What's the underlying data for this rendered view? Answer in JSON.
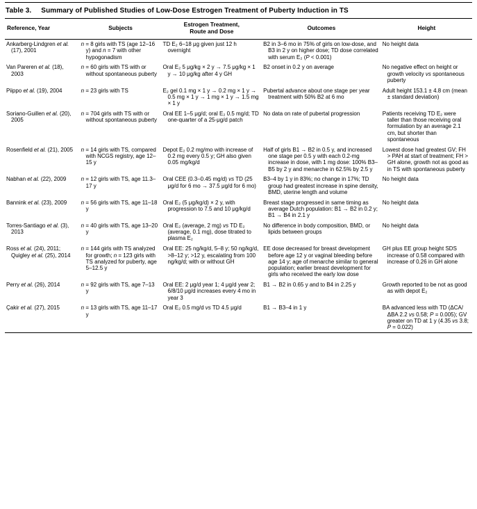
{
  "page": {
    "title_label": "Table 3.",
    "title_text": "Summary of Published Studies of Low-Dose Estrogen Treatment of Puberty Induction in TS"
  },
  "table": {
    "columns": [
      "Reference, Year",
      "Subjects",
      "Estrogen Treatment,\nRoute and Dose",
      "Outcomes",
      "Height"
    ],
    "rows": [
      {
        "reference": "Ankarberg-Lindgren et al. (17), 2001",
        "subjects": "n = 8 girls with TS (age 12–16 y) and n = 7 with other hypogonadism",
        "treatment": "TD E₂ 6–18 μg given just 12 h overnight",
        "outcomes": "B2 in 3–6 mo in 75% of girls on low-dose, and B3 in 2 y on higher dose; TD dose correlated with serum E₂ (P < 0.001)",
        "height": "No height data"
      },
      {
        "reference": "Van Pareren et al. (18), 2003",
        "subjects": "n = 60 girls with TS with or without spontaneous puberty",
        "treatment": "Oral E₂ 5 μg/kg × 2 y → 7.5 μg/kg × 1 y → 10 μg/kg after 4 y GH",
        "outcomes": "B2 onset in 0.2 y on average",
        "height": "No negative effect on height or growth velocity vs spontaneous puberty"
      },
      {
        "reference": "Piippo et al. (19), 2004",
        "subjects": "n = 23 girls with TS",
        "treatment": "E₂ gel 0.1 mg × 1 y → 0.2 mg × 1 y → 0.5 mg × 1 y → 1 mg × 1 y → 1.5 mg × 1 y",
        "outcomes": "Pubertal advance about one stage per year treatment with 50% B2 at 6 mo",
        "height": "Adult height 153.1 ± 4.8 cm (mean ± standard deviation)"
      },
      {
        "reference": "Soriano-Guillen et al. (20), 2005",
        "subjects": "n = 704 girls with TS with or without spontaneous puberty",
        "treatment": "Oral EE 1–5 μg/d; oral E₂ 0.5 mg/d; TD one-quarter of a 25-μg/d patch",
        "outcomes": "No data on rate of pubertal progression",
        "height": "Patients receiving TD E₂ were taller than those receiving oral formulation by an average 2.1 cm, but shorter than spontaneous"
      },
      {
        "reference": "Rosenfield et al. (21), 2005",
        "subjects": "n = 14 girls with TS, compared with NCGS registry, age 12–15 y",
        "treatment": "Depot E₂ 0.2 mg/mo with increase of 0.2 mg every 0.5 y; GH also given 0.05 mg/kg/d",
        "outcomes": "Half of girls B1 → B2 in 0.5 y, and increased one stage per 0.5 y with each 0.2-mg increase in dose, with 1 mg dose: 100% B3–B5 by 2 y and menarche in 62.5% by 2.5 y",
        "height": "Lowest dose had greatest GV; FH > PAH at start of treatment; FH > GH alone, growth not as good as in TS with spontaneous puberty"
      },
      {
        "reference": "Nabhan et al. (22), 2009",
        "subjects": "n = 12 girls with TS, age 11.3–17 y",
        "treatment": "Oral CEE (0.3–0.45 mg/d) vs TD (25 μg/d for 6 mo → 37.5 μg/d for 6 mo)",
        "outcomes": "B3–4 by 1 y in 83%; no change in 17%; TD group had greatest increase in spine density, BMD, uterine length and volume",
        "height": "No height data"
      },
      {
        "reference": "Bannink et al. (23), 2009",
        "subjects": "n = 56 girls with TS, age 11–18 y",
        "treatment": "Oral E₂ (5 μg/kg/d) × 2 y, with progression to 7.5 and 10 μg/kg/d",
        "outcomes": "Breast stage progressed in same timing as average Dutch population: B1 → B2 in 0.2 y; B1 → B4 in 2.1 y",
        "height": "No height data"
      },
      {
        "reference": "Torres-Santiago et al. (3), 2013",
        "subjects": "n = 40 girls with TS, age 13–20 y",
        "treatment": "Oral E₂ (average, 2 mg) vs TD E₂ (average, 0.1 mg), dose titrated to plasma E₂",
        "outcomes": "No difference in body composition, BMD, or lipids between groups",
        "height": "No height data"
      },
      {
        "reference": "Ross et al. (24), 2011; Quigley et al. (25), 2014",
        "subjects": "n = 144 girls with TS analyzed for growth; n = 123 girls with TS analyzed for puberty, age 5–12.5 y",
        "treatment": "Oral EE: 25 ng/kg/d, 5–8 y; 50 ng/kg/d, >8–12 y; >12 y, escalating from 100 ng/kg/d; with or without GH",
        "outcomes": "EE dose decreased for breast development before age 12 y or vaginal bleeding before age 14 y; age of menarche similar to general population; earlier breast development for girls who received the early low dose",
        "height": "GH plus EE group height SDS increase of 0.58 compared with increase of 0.26 in GH alone"
      },
      {
        "reference": "Perry et al. (26), 2014",
        "subjects": "n = 92 girls with TS, age 7–13 y",
        "treatment": "Oral EE: 2 μg/d year 1; 4 μg/d year 2; 6/8/10 μg/d increases every 4 mo in year 3",
        "outcomes": "B1 → B2 in 0.65 y and to B4 in 2.25 y",
        "height": "Growth reported to be not as good as with depot E₂"
      },
      {
        "reference": "Çakir et al. (27), 2015",
        "subjects": "n = 13 girls with TS, age 11–17 y",
        "treatment": "Oral E₂ 0.5 mg/d vs TD 4.5 μg/d",
        "outcomes": "B1 → B3–4 in 1 y",
        "height": "BA advanced less with TD (ΔCA/ΔBA 2.2 vs 0.58; P = 0.005); GV greater on TD at 1 y (4.35 vs 3.8; P = 0.022)"
      }
    ]
  }
}
